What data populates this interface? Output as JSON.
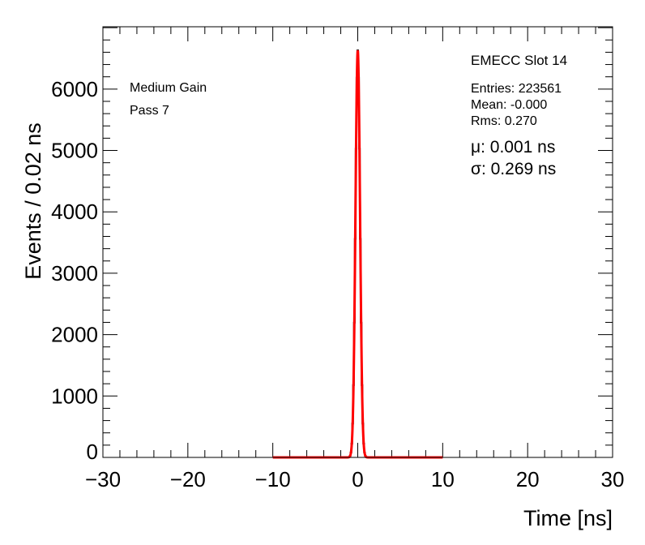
{
  "chart_data": {
    "type": "bar",
    "title": "EMECC Slot 14",
    "xlabel": "Time [ns]",
    "ylabel": "Events / 0.02 ns",
    "xlim": [
      -30,
      30
    ],
    "ylim": [
      0,
      7015
    ],
    "x_ticks": [
      -30,
      -20,
      -10,
      0,
      10,
      20,
      30
    ],
    "x_tick_labels": [
      "−30",
      "−20",
      "−10",
      "0",
      "10",
      "20",
      "30"
    ],
    "y_ticks": [
      0,
      1000,
      2000,
      3000,
      4000,
      5000,
      6000
    ],
    "y_tick_labels": [
      "0",
      "1000",
      "2000",
      "3000",
      "4000",
      "5000",
      "6000"
    ],
    "histogram": {
      "x": [
        -1.2,
        -1.1,
        -1.0,
        -0.9,
        -0.8,
        -0.7,
        -0.6,
        -0.5,
        -0.4,
        -0.3,
        -0.2,
        -0.1,
        0.0,
        0.1,
        0.2,
        0.3,
        0.4,
        0.5,
        0.6,
        0.7,
        0.8,
        0.9,
        1.0,
        1.1,
        1.2
      ],
      "values": [
        0,
        2,
        7,
        24,
        79,
        224,
        551,
        1178,
        2194,
        3560,
        5028,
        6188,
        6631,
        6188,
        5028,
        3560,
        2194,
        1178,
        551,
        224,
        79,
        24,
        7,
        2,
        0
      ],
      "color": "#000000"
    },
    "fit": {
      "type": "gaussian",
      "amplitude": 6631,
      "mu": 0.001,
      "sigma": 0.269,
      "range": [
        -10,
        10
      ],
      "color": "#ff0000"
    },
    "annotations": {
      "gain": "Medium Gain",
      "pass": "Pass 7",
      "entries": "Entries: 223561",
      "mean": "Mean: -0.000",
      "rms": "Rms: 0.270",
      "mu": "μ: 0.001 ns",
      "sigma": "σ: 0.269 ns"
    }
  }
}
